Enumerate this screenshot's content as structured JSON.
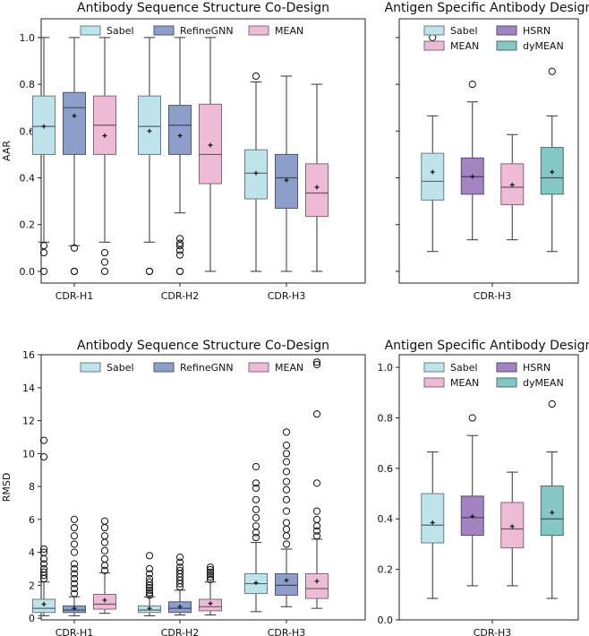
{
  "colors": {
    "sabel": "#bfe3ea",
    "refinegnn": "#8e9ecb",
    "mean": "#eebbd6",
    "hsrn": "#a483c2",
    "dymean": "#84c7c4"
  },
  "chart_data": [
    {
      "id": "aar-main",
      "type": "box",
      "title": "Antibody Sequence Structure Co-Design",
      "xlabel": "",
      "ylabel": "AAR",
      "ylim": [
        -0.05,
        1.08
      ],
      "yticks": [
        0.0,
        0.2,
        0.4,
        0.6,
        0.8,
        1.0
      ],
      "ytick_labels": [
        "0.0",
        "0.2",
        "0.4",
        "0.6",
        "0.8",
        "1.0"
      ],
      "show_ytick_labels": true,
      "categories": [
        "CDR-H1",
        "CDR-H2",
        "CDR-H3"
      ],
      "legend": {
        "position": "top-center",
        "columns": 3
      },
      "series": [
        {
          "name": "Sabel",
          "color_key": "sabel",
          "boxes": [
            {
              "whislo": 0.125,
              "q1": 0.5,
              "med": 0.62,
              "q3": 0.75,
              "whishi": 1.0,
              "mean": 0.62,
              "fliers": [
                0.0,
                0.08,
                0.11
              ]
            },
            {
              "whislo": 0.125,
              "q1": 0.5,
              "med": 0.62,
              "q3": 0.75,
              "whishi": 1.0,
              "mean": 0.6,
              "fliers": [
                0.0,
                0.0
              ]
            },
            {
              "whislo": 0.0,
              "q1": 0.31,
              "med": 0.42,
              "q3": 0.52,
              "whishi": 0.81,
              "mean": 0.42,
              "fliers": [
                0.835
              ]
            }
          ]
        },
        {
          "name": "RefineGNN",
          "color_key": "refinegnn",
          "boxes": [
            {
              "whislo": 0.11,
              "q1": 0.5,
              "med": 0.7,
              "q3": 0.765,
              "whishi": 1.0,
              "mean": 0.665,
              "fliers": [
                0.0,
                0.0,
                0.1
              ]
            },
            {
              "whislo": 0.25,
              "q1": 0.5,
              "med": 0.625,
              "q3": 0.71,
              "whishi": 1.0,
              "mean": 0.58,
              "fliers": [
                0.0,
                0.0,
                0.07,
                0.09,
                0.11,
                0.12,
                0.14
              ]
            },
            {
              "whislo": 0.0,
              "q1": 0.27,
              "med": 0.4,
              "q3": 0.5,
              "whishi": 0.835,
              "mean": 0.39,
              "fliers": []
            }
          ]
        },
        {
          "name": "MEAN",
          "color_key": "mean",
          "boxes": [
            {
              "whislo": 0.125,
              "q1": 0.5,
              "med": 0.625,
              "q3": 0.75,
              "whishi": 1.0,
              "mean": 0.58,
              "fliers": [
                0.0,
                0.04,
                0.08
              ]
            },
            {
              "whislo": 0.0,
              "q1": 0.375,
              "med": 0.5,
              "q3": 0.715,
              "whishi": 1.0,
              "mean": 0.54,
              "fliers": []
            },
            {
              "whislo": 0.0,
              "q1": 0.235,
              "med": 0.335,
              "q3": 0.46,
              "whishi": 0.8,
              "mean": 0.36,
              "fliers": []
            }
          ]
        }
      ]
    },
    {
      "id": "aar-antigen",
      "type": "box",
      "title": "Antigen Specific Antibody Design",
      "xlabel": "",
      "ylabel": "",
      "ylim": [
        -0.05,
        1.08
      ],
      "yticks": [
        0.0,
        0.2,
        0.4,
        0.6,
        0.8,
        1.0
      ],
      "ytick_labels": [],
      "show_ytick_labels": false,
      "categories": [
        "CDR-H3"
      ],
      "legend": {
        "position": "top-center",
        "columns": 2
      },
      "series": [
        {
          "name": "Sabel",
          "color_key": "sabel",
          "boxes": [
            {
              "whislo": 0.085,
              "q1": 0.305,
              "med": 0.385,
              "q3": 0.505,
              "whishi": 0.665,
              "mean": 0.425,
              "fliers": [
                1.0
              ]
            }
          ]
        },
        {
          "name": "HSRN",
          "color_key": "hsrn",
          "boxes": [
            {
              "whislo": 0.135,
              "q1": 0.33,
              "med": 0.405,
              "q3": 0.485,
              "whishi": 0.725,
              "mean": 0.405,
              "fliers": [
                0.8
              ]
            }
          ]
        },
        {
          "name": "MEAN",
          "color_key": "mean",
          "boxes": [
            {
              "whislo": 0.135,
              "q1": 0.285,
              "med": 0.36,
              "q3": 0.46,
              "whishi": 0.585,
              "mean": 0.37,
              "fliers": []
            }
          ]
        },
        {
          "name": "dyMEAN",
          "color_key": "dymean",
          "boxes": [
            {
              "whislo": 0.085,
              "q1": 0.33,
              "med": 0.4,
              "q3": 0.53,
              "whishi": 0.665,
              "mean": 0.425,
              "fliers": [
                0.855
              ]
            }
          ]
        }
      ]
    },
    {
      "id": "rmsd-main",
      "type": "box",
      "title": "Antibody Sequence Structure Co-Design",
      "xlabel": "",
      "ylabel": "RMSD",
      "ylim": [
        -0.1,
        16.0
      ],
      "yticks": [
        0,
        2,
        4,
        6,
        8,
        10,
        12,
        14,
        16
      ],
      "ytick_labels": [
        "0",
        "2",
        "4",
        "6",
        "8",
        "10",
        "12",
        "14",
        "16"
      ],
      "show_ytick_labels": true,
      "categories": [
        "CDR-H1",
        "CDR-H2",
        "CDR-H3"
      ],
      "legend": {
        "position": "top-center",
        "columns": 3
      },
      "series": [
        {
          "name": "Sabel",
          "color_key": "sabel",
          "boxes": [
            {
              "whislo": 0.15,
              "q1": 0.35,
              "med": 0.6,
              "q3": 1.15,
              "whishi": 2.2,
              "mean": 0.85,
              "fliers": [
                2.4,
                2.6,
                2.8,
                3.0,
                3.3,
                3.6,
                4.0,
                4.2,
                9.8,
                10.8
              ]
            },
            {
              "whislo": 0.15,
              "q1": 0.35,
              "med": 0.5,
              "q3": 0.75,
              "whishi": 1.3,
              "mean": 0.6,
              "fliers": [
                1.4,
                1.55,
                1.7,
                1.85,
                2.0,
                2.2,
                2.4,
                2.7,
                3.0,
                3.8
              ]
            },
            {
              "whislo": 0.4,
              "q1": 1.5,
              "med": 2.1,
              "q3": 2.7,
              "whishi": 4.6,
              "mean": 2.15,
              "fliers": [
                4.9,
                5.2,
                5.6,
                6.1,
                6.6,
                7.2,
                7.9,
                8.2,
                9.2
              ]
            }
          ]
        },
        {
          "name": "RefineGNN",
          "color_key": "refinegnn",
          "boxes": [
            {
              "whislo": 0.15,
              "q1": 0.35,
              "med": 0.5,
              "q3": 0.75,
              "whishi": 1.3,
              "mean": 0.6,
              "fliers": [
                1.5,
                1.8,
                2.1,
                2.4,
                2.7,
                3.0,
                3.3,
                4.0,
                4.5,
                5.0,
                5.5,
                6.0
              ]
            },
            {
              "whislo": 0.2,
              "q1": 0.35,
              "med": 0.6,
              "q3": 1.0,
              "whishi": 1.7,
              "mean": 0.7,
              "fliers": [
                1.9,
                2.1,
                2.3,
                2.5,
                2.7,
                2.9,
                3.1,
                3.4,
                3.7
              ]
            },
            {
              "whislo": 0.7,
              "q1": 1.4,
              "med": 2.0,
              "q3": 2.7,
              "whishi": 4.2,
              "mean": 2.3,
              "fliers": [
                4.5,
                5.0,
                5.4,
                5.8,
                6.5,
                7.2,
                7.8,
                8.3,
                8.9,
                9.5,
                10.0,
                10.5,
                11.3
              ]
            }
          ]
        },
        {
          "name": "MEAN",
          "color_key": "mean",
          "boxes": [
            {
              "whislo": 0.3,
              "q1": 0.55,
              "med": 0.85,
              "q3": 1.45,
              "whishi": 2.75,
              "mean": 1.1,
              "fliers": [
                2.9,
                3.2,
                3.6,
                4.1,
                4.6,
                5.0,
                5.5,
                5.9
              ]
            },
            {
              "whislo": 0.2,
              "q1": 0.45,
              "med": 0.7,
              "q3": 1.15,
              "whishi": 2.2,
              "mean": 0.9,
              "fliers": [
                2.35,
                2.5,
                2.65,
                2.8,
                2.95,
                3.1
              ]
            },
            {
              "whislo": 0.6,
              "q1": 1.2,
              "med": 1.8,
              "q3": 2.7,
              "whishi": 4.8,
              "mean": 2.25,
              "fliers": [
                5.0,
                5.3,
                5.6,
                6.0,
                6.5,
                8.2,
                12.4,
                15.4,
                15.55
              ]
            }
          ]
        }
      ]
    },
    {
      "id": "rmsd-antigen",
      "type": "box",
      "title": "Antigen Specific Antibody Design",
      "xlabel": "",
      "ylabel": "",
      "ylim": [
        0.0,
        1.05
      ],
      "yticks": [
        0.0,
        0.2,
        0.4,
        0.6,
        0.8,
        1.0
      ],
      "ytick_labels": [
        "0.0",
        "0.2",
        "0.4",
        "0.6",
        "0.8",
        "1.0"
      ],
      "show_ytick_labels": true,
      "categories": [
        "CDR-H3"
      ],
      "legend": {
        "position": "top-center",
        "columns": 2
      },
      "series": [
        {
          "name": "Sabel",
          "color_key": "sabel",
          "boxes": [
            {
              "whislo": 0.085,
              "q1": 0.305,
              "med": 0.375,
              "q3": 0.5,
              "whishi": 0.665,
              "mean": 0.385,
              "fliers": []
            }
          ]
        },
        {
          "name": "HSRN",
          "color_key": "hsrn",
          "boxes": [
            {
              "whislo": 0.135,
              "q1": 0.335,
              "med": 0.405,
              "q3": 0.49,
              "whishi": 0.73,
              "mean": 0.41,
              "fliers": [
                0.8
              ]
            }
          ]
        },
        {
          "name": "MEAN",
          "color_key": "mean",
          "boxes": [
            {
              "whislo": 0.135,
              "q1": 0.285,
              "med": 0.36,
              "q3": 0.465,
              "whishi": 0.585,
              "mean": 0.37,
              "fliers": []
            }
          ]
        },
        {
          "name": "dyMEAN",
          "color_key": "dymean",
          "boxes": [
            {
              "whislo": 0.085,
              "q1": 0.335,
              "med": 0.4,
              "q3": 0.53,
              "whishi": 0.665,
              "mean": 0.425,
              "fliers": [
                0.855
              ]
            }
          ]
        }
      ]
    }
  ]
}
